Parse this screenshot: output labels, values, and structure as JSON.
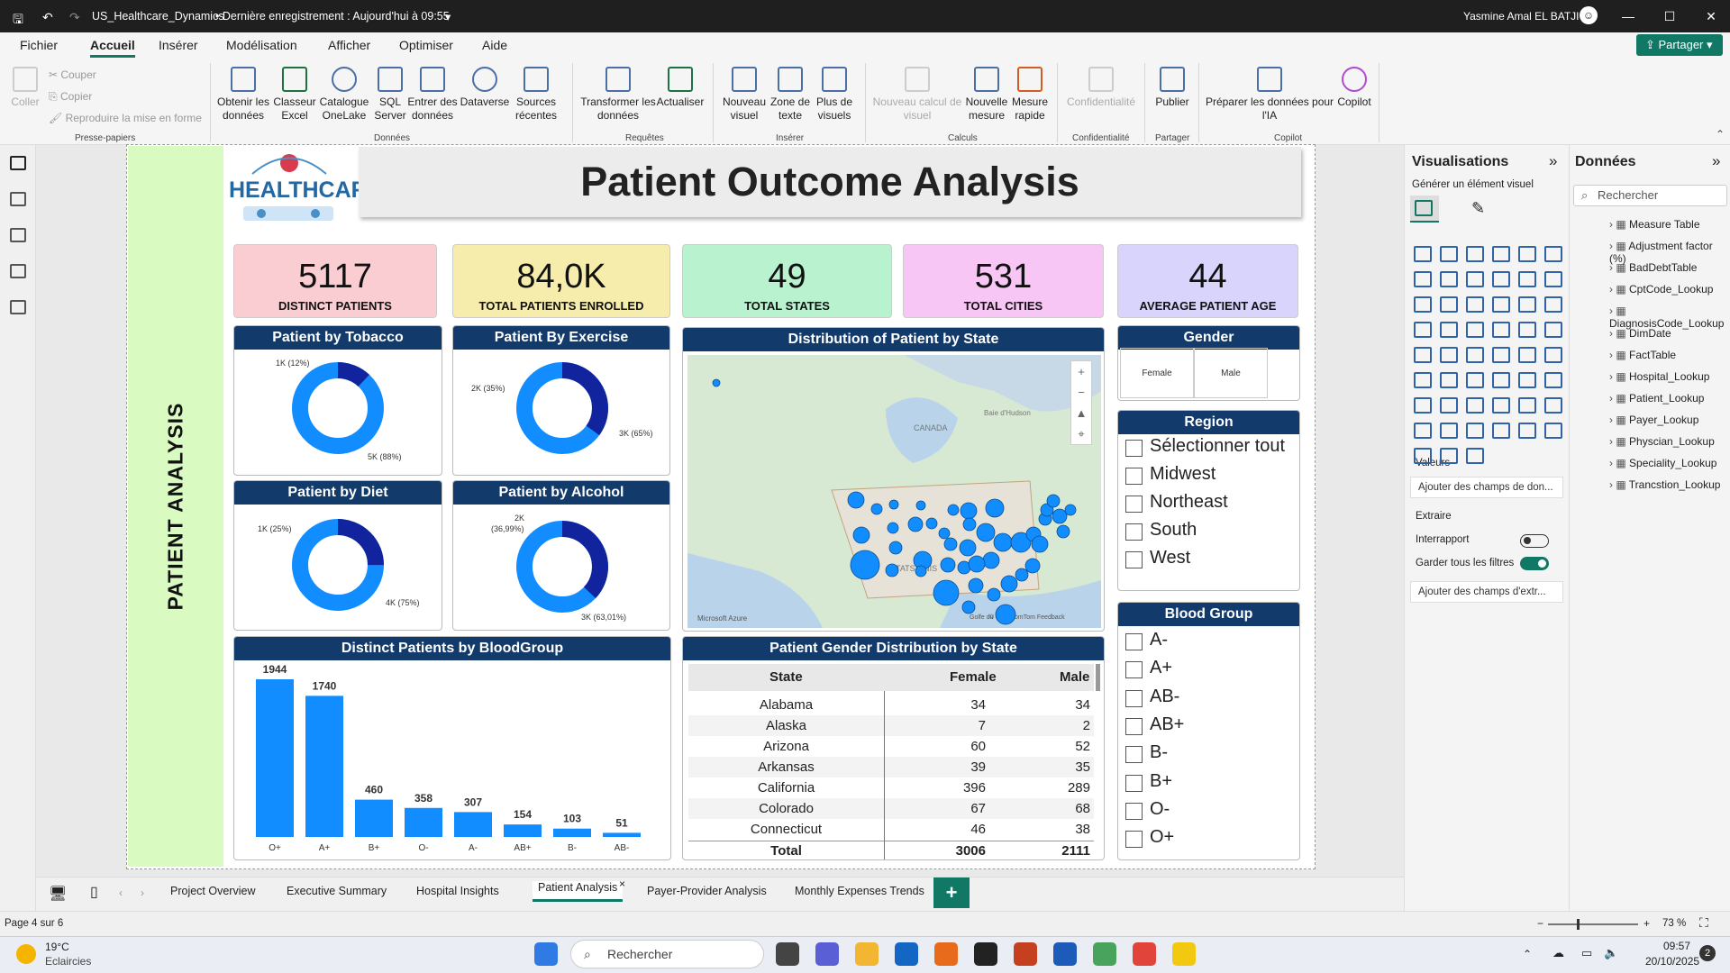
{
  "window": {
    "title": "US_Healthcare_Dynamics",
    "saved": "• Dernière enregistrement : Aujourd'hui à 09:55",
    "user": "Yasmine Amal EL BATJI"
  },
  "menu": {
    "items": [
      "Fichier",
      "Accueil",
      "Insérer",
      "Modélisation",
      "Afficher",
      "Optimiser",
      "Aide"
    ],
    "share": "Partager"
  },
  "ribbon": {
    "clipboard": {
      "paste": "Coller",
      "cut": "Couper",
      "copy": "Copier",
      "format": "Reproduire la mise en forme",
      "group": "Presse-papiers"
    },
    "data": {
      "get": "Obtenir les données",
      "excel": "Classeur Excel",
      "onelake": "Catalogue OneLake",
      "sql": "SQL Server",
      "enter": "Entrer des données",
      "dataverse": "Dataverse",
      "recent": "Sources récentes",
      "group": "Données"
    },
    "queries": {
      "transform": "Transformer les données",
      "refresh": "Actualiser",
      "group": "Requêtes"
    },
    "insert": {
      "visual": "Nouveau visuel",
      "text": "Zone de texte",
      "more": "Plus de visuels",
      "group": "Insérer"
    },
    "calc": {
      "newcalc": "Nouveau calcul de visuel",
      "measure": "Nouvelle mesure",
      "quick": "Mesure rapide",
      "group": "Calculs"
    },
    "sens": {
      "label": "Confidentialité",
      "group": "Confidentialité"
    },
    "share": {
      "publish": "Publier",
      "group": "Partager"
    },
    "copilot": {
      "prep": "Préparer les données pour l'IA",
      "copilot": "Copilot",
      "group": "Copilot"
    }
  },
  "report": {
    "side_title": "PATIENT ANALYSIS",
    "logo_text": "HEALTHCARE",
    "title": "Patient Outcome Analysis",
    "kpis": [
      {
        "value": "5117",
        "label": "DISTINCT PATIENTS",
        "bg": "#f9cdd2"
      },
      {
        "value": "84,0K",
        "label": "TOTAL PATIENTS ENROLLED",
        "bg": "#f6ecab"
      },
      {
        "value": "49",
        "label": "TOTAL STATES",
        "bg": "#b9f2cf"
      },
      {
        "value": "531",
        "label": "TOTAL CITIES",
        "bg": "#f8c6f4"
      },
      {
        "value": "44",
        "label": "AVERAGE PATIENT AGE",
        "bg": "#d9d4fb"
      }
    ],
    "donuts": [
      {
        "title": "Patient by Tobacco",
        "labels": [
          "1K (12%)",
          "5K (88%)"
        ],
        "fraction": 0.12
      },
      {
        "title": "Patient By Exercise",
        "labels": [
          "2K (35%)",
          "3K (65%)"
        ],
        "fraction": 0.35
      },
      {
        "title": "Patient by Diet",
        "labels": [
          "1K (25%)",
          "4K (75%)"
        ],
        "fraction": 0.25
      },
      {
        "title": "Patient by Alcohol",
        "labels": [
          "2K",
          "(36,99%)",
          "3K (63,01%)"
        ],
        "fraction": 0.3699
      }
    ],
    "map": {
      "title": "Distribution of Patient by State",
      "country": "CANADA",
      "country2": "ÉTATS-UNIS",
      "bay": "Baie d'Hudson",
      "gulf": "Golfe du",
      "attribution": "© 2025 TomTom  Feedback",
      "brand": "Microsoft Azure"
    },
    "gender_slicer": {
      "title": "Gender",
      "options": [
        "Female",
        "Male"
      ]
    },
    "region_slicer": {
      "title": "Region",
      "options": [
        "Sélectionner tout",
        "Midwest",
        "Northeast",
        "South",
        "West"
      ]
    },
    "blood_slicer": {
      "title": "Blood Group",
      "options": [
        "A-",
        "A+",
        "AB-",
        "AB+",
        "B-",
        "B+",
        "O-",
        "O+"
      ]
    },
    "chart_title": "Distinct Patients by BloodGroup",
    "table": {
      "title": "Patient Gender Distribution by State",
      "headers": [
        "State",
        "Female",
        "Male"
      ],
      "rows": [
        [
          "Alabama",
          "34",
          "34"
        ],
        [
          "Alaska",
          "7",
          "2"
        ],
        [
          "Arizona",
          "60",
          "52"
        ],
        [
          "Arkansas",
          "39",
          "35"
        ],
        [
          "California",
          "396",
          "289"
        ],
        [
          "Colorado",
          "67",
          "68"
        ],
        [
          "Connecticut",
          "46",
          "38"
        ]
      ],
      "total": [
        "Total",
        "3006",
        "2111"
      ]
    }
  },
  "chart_data": {
    "type": "bar",
    "title": "Distinct Patients by BloodGroup",
    "categories": [
      "O+",
      "A+",
      "B+",
      "O-",
      "A-",
      "AB+",
      "B-",
      "AB-"
    ],
    "values": [
      1944,
      1740,
      460,
      358,
      307,
      154,
      103,
      51
    ],
    "color": "#118dff"
  },
  "panes": {
    "vis": {
      "title": "Visualisations",
      "build": "Générer un élément visuel",
      "values": "Valeurs",
      "values_ph": "Ajouter des champs de don...",
      "drill": "Extraire",
      "cross": "Interrapport",
      "keep": "Garder tous les filtres",
      "drill_ph": "Ajouter des champs d'extr..."
    },
    "data": {
      "title": "Données",
      "search": "Rechercher",
      "fields": [
        "Measure Table",
        "Adjustment factor (%)",
        "BadDebtTable",
        "CptCode_Lookup",
        "DiagnosisCode_Lookup",
        "DimDate",
        "FactTable",
        "Hospital_Lookup",
        "Patient_Lookup",
        "Payer_Lookup",
        "Physcian_Lookup",
        "Speciality_Lookup",
        "Trancstion_Lookup"
      ]
    }
  },
  "tabs": [
    "Project Overview",
    "Executive Summary",
    "Hospital Insights",
    "Patient Analysis",
    "Payer-Provider Analysis",
    "Monthly Expenses Trends"
  ],
  "status": {
    "page": "Page 4 sur 6",
    "zoom": "73 %"
  },
  "taskbar": {
    "temp": "19°C",
    "weather": "Eclaircies",
    "search": "Rechercher",
    "time": "09:57",
    "date": "20/10/2025",
    "notif": "2"
  }
}
